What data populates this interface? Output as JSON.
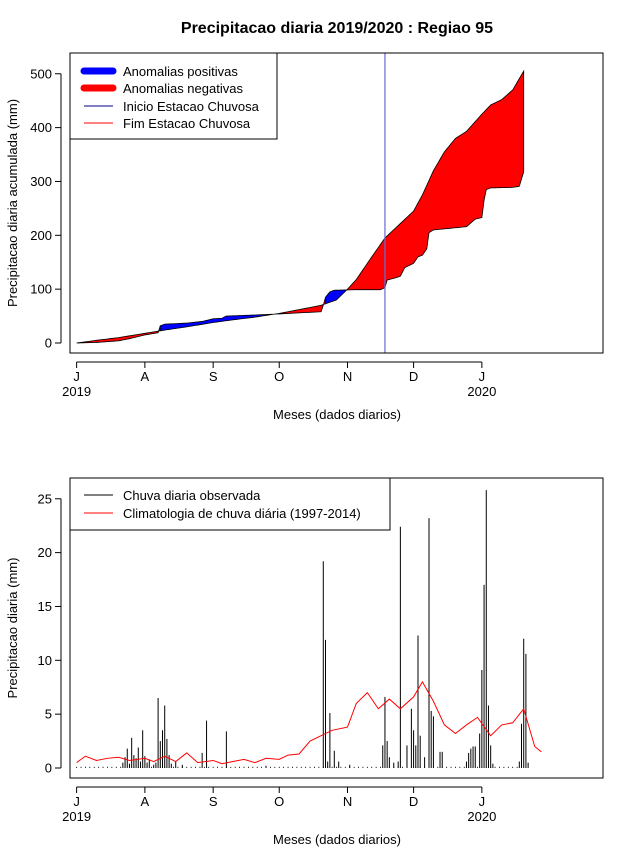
{
  "chart_data": [
    {
      "type": "area",
      "title": "Precipitacao diaria 2019/2020 : Regiao 95",
      "xlabel": "Meses (dados diarios)",
      "ylabel": "Precipitacao diaria acumulada (mm)",
      "ylim": [
        0,
        520
      ],
      "yticks": [
        0,
        100,
        200,
        300,
        400,
        500
      ],
      "xlim": [
        "2019-06-28",
        "2020-02-25"
      ],
      "xticks": [
        {
          "date": "2019-07-01",
          "label": "J"
        },
        {
          "date": "2019-08-01",
          "label": "A"
        },
        {
          "date": "2019-09-01",
          "label": "S"
        },
        {
          "date": "2019-10-01",
          "label": "O"
        },
        {
          "date": "2019-11-01",
          "label": "N"
        },
        {
          "date": "2019-12-01",
          "label": "D"
        },
        {
          "date": "2020-01-01",
          "label": "J"
        }
      ],
      "year_labels": [
        {
          "date": "2019-07-01",
          "label": "2019"
        },
        {
          "date": "2020-01-01",
          "label": "2020"
        }
      ],
      "legend": {
        "position": "top-left",
        "items": [
          {
            "label": "Anomalias positivas",
            "color": "#0000ff",
            "style": "thick"
          },
          {
            "label": "Anomalias negativas",
            "color": "#ff0000",
            "style": "thick"
          },
          {
            "label": "Inicio Estacao Chuvosa",
            "color": "#00008b",
            "style": "thin"
          },
          {
            "label": "Fim Estacao Chuvosa",
            "color": "#ff0000",
            "style": "thin"
          }
        ]
      },
      "vline": {
        "date": "2019-11-18",
        "color": "#6a6ad6"
      },
      "series": [
        {
          "name": "observed",
          "points": [
            [
              "2019-07-01",
              0
            ],
            [
              "2019-07-10",
              1
            ],
            [
              "2019-07-20",
              4
            ],
            [
              "2019-07-25",
              8
            ],
            [
              "2019-08-01",
              15
            ],
            [
              "2019-08-07",
              19
            ],
            [
              "2019-08-08",
              32
            ],
            [
              "2019-08-10",
              35
            ],
            [
              "2019-08-20",
              37
            ],
            [
              "2019-08-27",
              40
            ],
            [
              "2019-09-01",
              45
            ],
            [
              "2019-09-05",
              46
            ],
            [
              "2019-09-07",
              50
            ],
            [
              "2019-09-20",
              52
            ],
            [
              "2019-10-01",
              54
            ],
            [
              "2019-10-10",
              56
            ],
            [
              "2019-10-20",
              58
            ],
            [
              "2019-10-21",
              70
            ],
            [
              "2019-10-22",
              85
            ],
            [
              "2019-10-24",
              95
            ],
            [
              "2019-10-26",
              98
            ],
            [
              "2019-11-05",
              99
            ],
            [
              "2019-11-16",
              99
            ],
            [
              "2019-11-18",
              103
            ],
            [
              "2019-11-19",
              117
            ],
            [
              "2019-11-22",
              120
            ],
            [
              "2019-11-25",
              124
            ],
            [
              "2019-11-27",
              140
            ],
            [
              "2019-12-01",
              148
            ],
            [
              "2019-12-03",
              160
            ],
            [
              "2019-12-05",
              163
            ],
            [
              "2019-12-07",
              175
            ],
            [
              "2019-12-08",
              205
            ],
            [
              "2019-12-10",
              210
            ],
            [
              "2019-12-15",
              212
            ],
            [
              "2019-12-25",
              216
            ],
            [
              "2019-12-29",
              230
            ],
            [
              "2020-01-01",
              233
            ],
            [
              "2020-01-02",
              265
            ],
            [
              "2020-01-03",
              285
            ],
            [
              "2020-01-05",
              288
            ],
            [
              "2020-01-15",
              289
            ],
            [
              "2020-01-18",
              291
            ],
            [
              "2020-01-20",
              318
            ]
          ]
        },
        {
          "name": "climatology",
          "points": [
            [
              "2019-07-01",
              0
            ],
            [
              "2019-07-10",
              5
            ],
            [
              "2019-07-20",
              10
            ],
            [
              "2019-08-01",
              18
            ],
            [
              "2019-08-10",
              24
            ],
            [
              "2019-08-20",
              30
            ],
            [
              "2019-09-01",
              38
            ],
            [
              "2019-09-10",
              43
            ],
            [
              "2019-09-20",
              48
            ],
            [
              "2019-10-01",
              55
            ],
            [
              "2019-10-10",
              62
            ],
            [
              "2019-10-20",
              70
            ],
            [
              "2019-10-27",
              80
            ],
            [
              "2019-11-01",
              100
            ],
            [
              "2019-11-05",
              118
            ],
            [
              "2019-11-12",
              160
            ],
            [
              "2019-11-18",
              195
            ],
            [
              "2019-11-25",
              222
            ],
            [
              "2019-12-01",
              245
            ],
            [
              "2019-12-05",
              275
            ],
            [
              "2019-12-10",
              320
            ],
            [
              "2019-12-15",
              355
            ],
            [
              "2019-12-20",
              380
            ],
            [
              "2019-12-25",
              393
            ],
            [
              "2020-01-01",
              425
            ],
            [
              "2020-01-05",
              442
            ],
            [
              "2020-01-10",
              452
            ],
            [
              "2020-01-15",
              470
            ],
            [
              "2020-01-20",
              505
            ]
          ]
        }
      ]
    },
    {
      "type": "bar",
      "title": "",
      "xlabel": "Meses (dados diarios)",
      "ylabel": "Precipitacao diaria (mm)",
      "ylim": [
        0,
        26
      ],
      "yticks": [
        0,
        5,
        10,
        15,
        20,
        25
      ],
      "xlim": [
        "2019-06-28",
        "2020-02-25"
      ],
      "xticks": [
        {
          "date": "2019-07-01",
          "label": "J"
        },
        {
          "date": "2019-08-01",
          "label": "A"
        },
        {
          "date": "2019-09-01",
          "label": "S"
        },
        {
          "date": "2019-10-01",
          "label": "O"
        },
        {
          "date": "2019-11-01",
          "label": "N"
        },
        {
          "date": "2019-12-01",
          "label": "D"
        },
        {
          "date": "2020-01-01",
          "label": "J"
        }
      ],
      "year_labels": [
        {
          "date": "2019-07-01",
          "label": "2019"
        },
        {
          "date": "2020-01-01",
          "label": "2020"
        }
      ],
      "legend": {
        "position": "top-left",
        "items": [
          {
            "label": "Chuva diaria observada",
            "color": "#000000"
          },
          {
            "label": "Climatologia de chuva diária (1997-2014)",
            "color": "#ff0000"
          }
        ]
      },
      "bars_name": "Chuva diaria observada",
      "bars": [
        [
          "2019-07-22",
          0.5
        ],
        [
          "2019-07-23",
          1.0
        ],
        [
          "2019-07-24",
          1.8
        ],
        [
          "2019-07-25",
          0.4
        ],
        [
          "2019-07-26",
          2.8
        ],
        [
          "2019-07-27",
          1.2
        ],
        [
          "2019-07-28",
          0.9
        ],
        [
          "2019-07-29",
          1.9
        ],
        [
          "2019-07-30",
          0.6
        ],
        [
          "2019-07-31",
          3.5
        ],
        [
          "2019-08-01",
          1.1
        ],
        [
          "2019-08-02",
          0.5
        ],
        [
          "2019-08-03",
          0.8
        ],
        [
          "2019-08-05",
          0.3
        ],
        [
          "2019-08-06",
          0.5
        ],
        [
          "2019-08-07",
          6.5
        ],
        [
          "2019-08-08",
          2.5
        ],
        [
          "2019-08-09",
          3.5
        ],
        [
          "2019-08-10",
          5.8
        ],
        [
          "2019-08-11",
          2.7
        ],
        [
          "2019-08-12",
          1.2
        ],
        [
          "2019-08-13",
          0.4
        ],
        [
          "2019-08-15",
          0.6
        ],
        [
          "2019-08-18",
          0.3
        ],
        [
          "2019-08-27",
          1.4
        ],
        [
          "2019-08-29",
          4.4
        ],
        [
          "2019-09-07",
          3.4
        ],
        [
          "2019-09-25",
          0.2
        ],
        [
          "2019-10-21",
          19.2
        ],
        [
          "2019-10-22",
          11.9
        ],
        [
          "2019-10-23",
          0.6
        ],
        [
          "2019-10-24",
          5.1
        ],
        [
          "2019-10-26",
          1.6
        ],
        [
          "2019-10-28",
          0.6
        ],
        [
          "2019-11-02",
          0.3
        ],
        [
          "2019-11-17",
          2.1
        ],
        [
          "2019-11-18",
          6.6
        ],
        [
          "2019-11-19",
          2.5
        ],
        [
          "2019-11-20",
          1.0
        ],
        [
          "2019-11-22",
          0.5
        ],
        [
          "2019-11-24",
          0.6
        ],
        [
          "2019-11-25",
          22.4
        ],
        [
          "2019-11-28",
          2.1
        ],
        [
          "2019-11-30",
          5.5
        ],
        [
          "2019-12-01",
          3.5
        ],
        [
          "2019-12-02",
          2.1
        ],
        [
          "2019-12-03",
          12.3
        ],
        [
          "2019-12-04",
          3.0
        ],
        [
          "2019-12-06",
          1.0
        ],
        [
          "2019-12-08",
          23.2
        ],
        [
          "2019-12-09",
          5.3
        ],
        [
          "2019-12-10",
          4.8
        ],
        [
          "2019-12-13",
          1.5
        ],
        [
          "2019-12-14",
          1.5
        ],
        [
          "2019-12-25",
          0.6
        ],
        [
          "2019-12-26",
          1.4
        ],
        [
          "2019-12-27",
          1.8
        ],
        [
          "2019-12-28",
          2.0
        ],
        [
          "2019-12-29",
          2.0
        ],
        [
          "2019-12-31",
          3.2
        ],
        [
          "2020-01-01",
          9.1
        ],
        [
          "2020-01-02",
          17.0
        ],
        [
          "2020-01-03",
          25.8
        ],
        [
          "2020-01-04",
          5.8
        ],
        [
          "2020-01-05",
          2.1
        ],
        [
          "2020-01-06",
          0.4
        ],
        [
          "2020-01-18",
          0.6
        ],
        [
          "2020-01-19",
          4.1
        ],
        [
          "2020-01-20",
          12.0
        ],
        [
          "2020-01-21",
          10.6
        ],
        [
          "2020-01-22",
          0.5
        ]
      ],
      "line_name": "Climatologia de chuva diária (1997-2014)",
      "line": [
        [
          "2019-07-01",
          0.5
        ],
        [
          "2019-07-05",
          1.1
        ],
        [
          "2019-07-10",
          0.7
        ],
        [
          "2019-07-15",
          0.9
        ],
        [
          "2019-07-20",
          1.0
        ],
        [
          "2019-07-25",
          0.7
        ],
        [
          "2019-08-01",
          0.9
        ],
        [
          "2019-08-05",
          0.6
        ],
        [
          "2019-08-10",
          1.1
        ],
        [
          "2019-08-15",
          0.6
        ],
        [
          "2019-08-20",
          1.4
        ],
        [
          "2019-08-25",
          0.5
        ],
        [
          "2019-09-01",
          0.7
        ],
        [
          "2019-09-05",
          0.4
        ],
        [
          "2019-09-10",
          0.6
        ],
        [
          "2019-09-15",
          0.8
        ],
        [
          "2019-09-20",
          0.5
        ],
        [
          "2019-09-25",
          0.9
        ],
        [
          "2019-10-01",
          0.8
        ],
        [
          "2019-10-05",
          1.2
        ],
        [
          "2019-10-10",
          1.3
        ],
        [
          "2019-10-15",
          2.5
        ],
        [
          "2019-10-20",
          3.0
        ],
        [
          "2019-10-25",
          3.5
        ],
        [
          "2019-11-01",
          3.8
        ],
        [
          "2019-11-05",
          6.0
        ],
        [
          "2019-11-10",
          7.0
        ],
        [
          "2019-11-15",
          5.5
        ],
        [
          "2019-11-20",
          6.4
        ],
        [
          "2019-11-25",
          5.5
        ],
        [
          "2019-12-01",
          6.6
        ],
        [
          "2019-12-05",
          8.0
        ],
        [
          "2019-12-10",
          6.2
        ],
        [
          "2019-12-15",
          4.0
        ],
        [
          "2019-12-20",
          3.2
        ],
        [
          "2019-12-25",
          4.0
        ],
        [
          "2019-12-30",
          4.7
        ],
        [
          "2020-01-05",
          3.0
        ],
        [
          "2020-01-10",
          4.0
        ],
        [
          "2020-01-15",
          4.2
        ],
        [
          "2020-01-20",
          5.5
        ],
        [
          "2020-01-25",
          2.0
        ],
        [
          "2020-01-28",
          1.5
        ]
      ]
    }
  ]
}
